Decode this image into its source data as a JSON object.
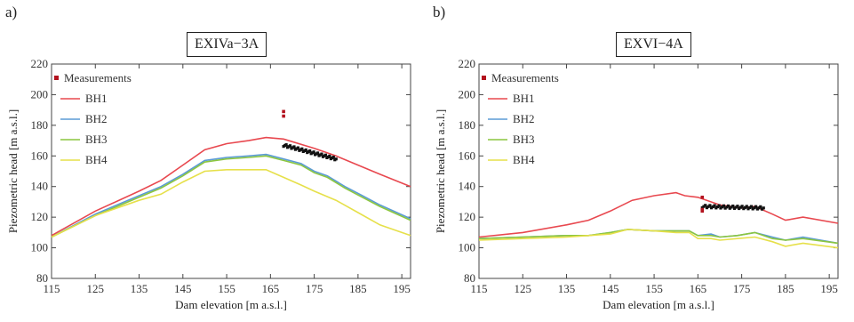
{
  "chart_data": [
    {
      "type": "line",
      "panel_label": "a)",
      "title": "EXIVa−3A",
      "xlabel": "Dam elevation [m a.s.l.]",
      "ylabel": "Piezometric head [m a.s.l.]",
      "xlim": [
        115,
        197
      ],
      "ylim": [
        80,
        220
      ],
      "xticks": [
        115,
        125,
        135,
        145,
        155,
        165,
        175,
        185,
        195
      ],
      "yticks": [
        80,
        100,
        120,
        140,
        160,
        180,
        200,
        220
      ],
      "legend_position": "top-left",
      "legend": [
        "Measurements",
        "BH1",
        "BH2",
        "BH3",
        "BH4"
      ],
      "series": [
        {
          "name": "BH1",
          "color": "#e8484f",
          "x": [
            115,
            125,
            135,
            140,
            145,
            150,
            155,
            160,
            164,
            168,
            175,
            180,
            185,
            190,
            197
          ],
          "y": [
            108,
            124,
            137,
            144,
            154,
            164,
            168,
            170,
            172,
            171,
            165,
            160,
            154,
            148,
            140
          ]
        },
        {
          "name": "BH2",
          "color": "#5b9bd5",
          "x": [
            115,
            125,
            135,
            140,
            145,
            150,
            155,
            160,
            164,
            168,
            172,
            175,
            178,
            182,
            186,
            190,
            197
          ],
          "y": [
            107,
            122,
            134,
            140,
            148,
            157,
            159,
            160,
            161,
            158,
            155,
            150,
            147,
            140,
            134,
            128,
            119
          ]
        },
        {
          "name": "BH3",
          "color": "#8cc63f",
          "x": [
            115,
            125,
            135,
            140,
            145,
            150,
            155,
            160,
            164,
            168,
            172,
            175,
            178,
            182,
            186,
            190,
            197
          ],
          "y": [
            107,
            121,
            133,
            139,
            147,
            156,
            158,
            159,
            160,
            157,
            154,
            149,
            146,
            139,
            133,
            127,
            118
          ]
        },
        {
          "name": "BH4",
          "color": "#e6e04a",
          "x": [
            115,
            125,
            135,
            140,
            145,
            150,
            155,
            160,
            164,
            168,
            172,
            175,
            180,
            185,
            190,
            197
          ],
          "y": [
            107,
            121,
            131,
            135,
            143,
            150,
            151,
            151,
            151,
            146,
            141,
            137,
            131,
            123,
            115,
            108
          ]
        }
      ],
      "measurements": {
        "name": "Measurements",
        "color": "#b3121e",
        "outliers_x": [
          168,
          168
        ],
        "outliers_y": [
          189,
          186
        ],
        "x_range": [
          168,
          180
        ],
        "y_start": 167,
        "y_end": 158
      }
    },
    {
      "type": "line",
      "panel_label": "b)",
      "title": "EXVI−4A",
      "xlabel": "Dam elevation [m a.s.l.]",
      "ylabel": "Piezometric head [m a.s.l.]",
      "xlim": [
        115,
        197
      ],
      "ylim": [
        80,
        220
      ],
      "xticks": [
        115,
        125,
        135,
        145,
        155,
        165,
        175,
        185,
        195
      ],
      "yticks": [
        80,
        100,
        120,
        140,
        160,
        180,
        200,
        220
      ],
      "legend_position": "top-left",
      "legend": [
        "Measurements",
        "BH1",
        "BH2",
        "BH3",
        "BH4"
      ],
      "series": [
        {
          "name": "BH1",
          "color": "#e8484f",
          "x": [
            115,
            125,
            135,
            140,
            145,
            150,
            155,
            160,
            162,
            165,
            170,
            175,
            178,
            182,
            185,
            189,
            197
          ],
          "y": [
            107,
            110,
            115,
            118,
            124,
            131,
            134,
            136,
            134,
            133,
            128,
            126,
            127,
            122,
            118,
            120,
            116
          ]
        },
        {
          "name": "BH2",
          "color": "#5b9bd5",
          "x": [
            115,
            125,
            135,
            140,
            145,
            149,
            155,
            160,
            163,
            165,
            168,
            170,
            174,
            178,
            182,
            185,
            189,
            197
          ],
          "y": [
            106,
            107,
            108,
            108,
            110,
            112,
            111,
            111,
            111,
            108,
            109,
            107,
            108,
            110,
            107,
            105,
            107,
            103
          ]
        },
        {
          "name": "BH3",
          "color": "#8cc63f",
          "x": [
            115,
            125,
            135,
            140,
            145,
            149,
            155,
            160,
            163,
            165,
            168,
            170,
            174,
            178,
            182,
            185,
            189,
            197
          ],
          "y": [
            106,
            107,
            108,
            108,
            110,
            112,
            111,
            111,
            111,
            108,
            108,
            107,
            108,
            110,
            106,
            105,
            106,
            103
          ]
        },
        {
          "name": "BH4",
          "color": "#e6e04a",
          "x": [
            115,
            125,
            135,
            140,
            145,
            149,
            155,
            160,
            163,
            165,
            168,
            170,
            174,
            178,
            182,
            185,
            189,
            197
          ],
          "y": [
            105,
            106,
            107,
            108,
            109,
            112,
            111,
            110,
            110,
            106,
            106,
            105,
            106,
            107,
            104,
            101,
            103,
            100
          ]
        }
      ],
      "measurements": {
        "name": "Measurements",
        "color": "#b3121e",
        "outliers_x": [
          166,
          166,
          166
        ],
        "outliers_y": [
          133,
          124,
          125
        ],
        "x_range": [
          166,
          180
        ],
        "y_start": 127,
        "y_end": 126
      }
    }
  ]
}
